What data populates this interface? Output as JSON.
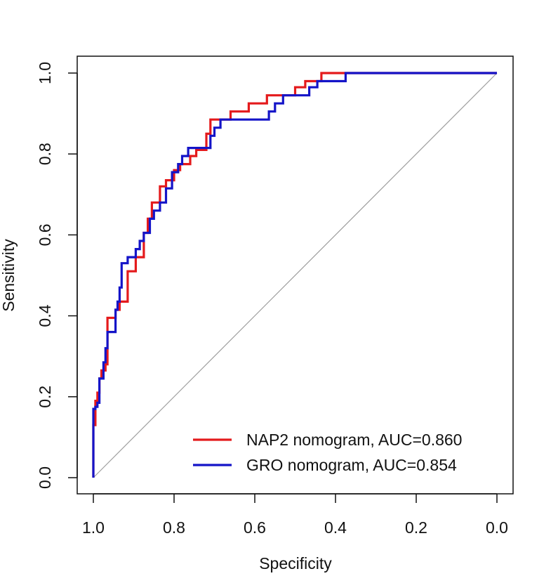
{
  "chart_data": {
    "type": "line",
    "title": "",
    "xlabel": "Specificity",
    "ylabel": "Sensitivity",
    "xlim": [
      1.0,
      0.0
    ],
    "ylim": [
      0.0,
      1.0
    ],
    "x_reversed": true,
    "xticks": [
      "1.0",
      "0.8",
      "0.6",
      "0.4",
      "0.2",
      "0.0"
    ],
    "yticks": [
      "0.0",
      "0.2",
      "0.4",
      "0.6",
      "0.8",
      "1.0"
    ],
    "grid": false,
    "legend_position": "bottom-right",
    "reference_line": {
      "from": [
        1.0,
        0.0
      ],
      "to": [
        0.0,
        1.0
      ],
      "color": "#9e9e9e"
    },
    "series": [
      {
        "name": "NAP2 nomogram, AUC=0.860",
        "color": "#e41a1c",
        "x": [
          1.0,
          1.0,
          0.995,
          0.995,
          0.99,
          0.99,
          0.985,
          0.985,
          0.98,
          0.98,
          0.97,
          0.97,
          0.965,
          0.965,
          0.945,
          0.945,
          0.935,
          0.935,
          0.915,
          0.915,
          0.895,
          0.895,
          0.875,
          0.875,
          0.865,
          0.865,
          0.855,
          0.855,
          0.835,
          0.835,
          0.82,
          0.82,
          0.8,
          0.8,
          0.785,
          0.785,
          0.76,
          0.76,
          0.745,
          0.745,
          0.72,
          0.72,
          0.71,
          0.71,
          0.66,
          0.66,
          0.615,
          0.615,
          0.57,
          0.57,
          0.5,
          0.5,
          0.475,
          0.475,
          0.435,
          0.435,
          0.0
        ],
        "y": [
          0.0,
          0.13,
          0.13,
          0.19,
          0.19,
          0.21,
          0.21,
          0.245,
          0.245,
          0.265,
          0.265,
          0.28,
          0.28,
          0.395,
          0.395,
          0.415,
          0.415,
          0.435,
          0.435,
          0.51,
          0.51,
          0.545,
          0.545,
          0.605,
          0.605,
          0.64,
          0.64,
          0.68,
          0.68,
          0.72,
          0.72,
          0.735,
          0.735,
          0.76,
          0.76,
          0.775,
          0.775,
          0.795,
          0.795,
          0.81,
          0.81,
          0.85,
          0.85,
          0.885,
          0.885,
          0.905,
          0.905,
          0.925,
          0.925,
          0.945,
          0.945,
          0.965,
          0.965,
          0.98,
          0.98,
          1.0,
          1.0
        ]
      },
      {
        "name": "GRO nomogram, AUC=0.854",
        "color": "#1414c8",
        "x": [
          1.0,
          1.0,
          0.995,
          0.995,
          0.99,
          0.99,
          0.985,
          0.985,
          0.975,
          0.975,
          0.97,
          0.97,
          0.965,
          0.965,
          0.945,
          0.945,
          0.94,
          0.94,
          0.935,
          0.935,
          0.93,
          0.93,
          0.915,
          0.915,
          0.895,
          0.895,
          0.885,
          0.885,
          0.875,
          0.875,
          0.86,
          0.86,
          0.85,
          0.85,
          0.835,
          0.835,
          0.82,
          0.82,
          0.805,
          0.805,
          0.79,
          0.79,
          0.78,
          0.78,
          0.765,
          0.765,
          0.71,
          0.71,
          0.7,
          0.7,
          0.685,
          0.685,
          0.66,
          0.66,
          0.565,
          0.565,
          0.55,
          0.55,
          0.53,
          0.53,
          0.515,
          0.515,
          0.465,
          0.465,
          0.445,
          0.445,
          0.375,
          0.375,
          0.0
        ],
        "y": [
          0.0,
          0.17,
          0.17,
          0.175,
          0.175,
          0.185,
          0.185,
          0.245,
          0.245,
          0.285,
          0.285,
          0.32,
          0.32,
          0.36,
          0.36,
          0.415,
          0.415,
          0.435,
          0.435,
          0.47,
          0.47,
          0.53,
          0.53,
          0.545,
          0.545,
          0.565,
          0.565,
          0.585,
          0.585,
          0.605,
          0.605,
          0.64,
          0.64,
          0.66,
          0.66,
          0.68,
          0.68,
          0.715,
          0.715,
          0.755,
          0.755,
          0.775,
          0.775,
          0.795,
          0.795,
          0.815,
          0.815,
          0.845,
          0.845,
          0.865,
          0.865,
          0.885,
          0.885,
          0.885,
          0.885,
          0.905,
          0.905,
          0.925,
          0.925,
          0.945,
          0.945,
          0.945,
          0.945,
          0.965,
          0.965,
          0.98,
          0.98,
          1.0,
          1.0
        ]
      }
    ]
  }
}
